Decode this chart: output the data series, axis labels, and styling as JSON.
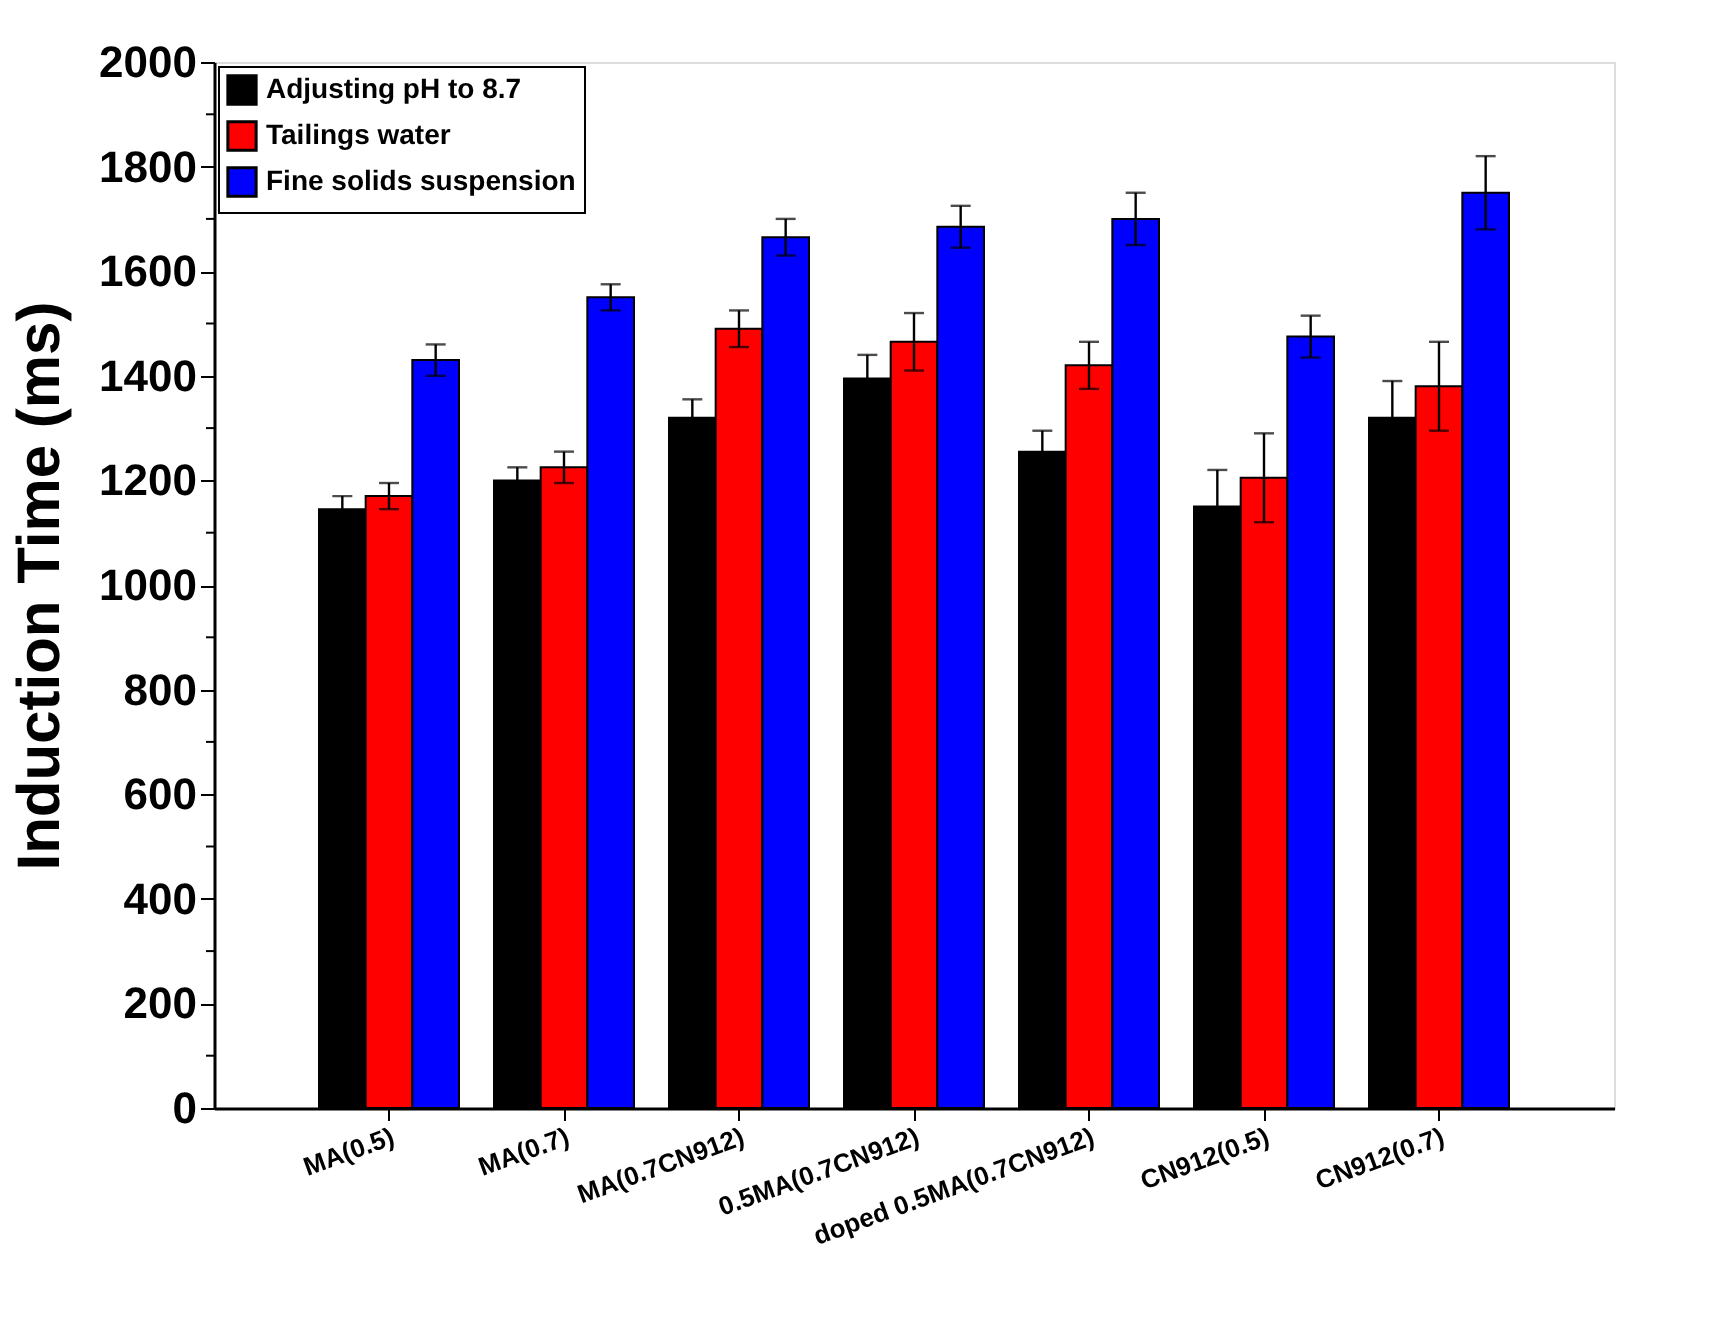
{
  "chart_data": {
    "type": "bar",
    "ylabel": "Induction Time  (ms)",
    "categories": [
      "MA(0.5)",
      "MA(0.7)",
      "MA(0.7CN912)",
      "0.5MA(0.7CN912)",
      "doped 0.5MA(0.7CN912)",
      "CN912(0.5)",
      "CN912(0.7)"
    ],
    "series": [
      {
        "name": "Adjusting pH to 8.7",
        "color": "#000000",
        "values": [
          1145,
          1200,
          1320,
          1395,
          1255,
          1150,
          1320
        ],
        "errors": [
          25,
          25,
          35,
          45,
          40,
          70,
          70
        ]
      },
      {
        "name": "Tailings water",
        "color": "#ff0000",
        "values": [
          1170,
          1225,
          1490,
          1465,
          1420,
          1205,
          1380
        ],
        "errors": [
          25,
          30,
          35,
          55,
          45,
          85,
          85
        ]
      },
      {
        "name": "Fine solids suspension",
        "color": "#0000ff",
        "values": [
          1430,
          1550,
          1665,
          1685,
          1700,
          1475,
          1750
        ],
        "errors": [
          30,
          25,
          35,
          40,
          50,
          40,
          70
        ]
      }
    ],
    "ylim": [
      0,
      2000
    ],
    "yticks": [
      0,
      {
        "value": 100,
        "label": null
      },
      200,
      {
        "value": 300,
        "label": null
      },
      400,
      {
        "value": 500,
        "label": null
      },
      600,
      {
        "value": 700,
        "label": null
      },
      800,
      {
        "value": 900,
        "label": null
      },
      1000,
      {
        "value": 1100,
        "label": null
      },
      1200,
      {
        "value": 1300,
        "label": null
      },
      1400,
      {
        "value": 1500,
        "label": null
      },
      1600,
      {
        "value": 1700,
        "label": null
      },
      1800,
      {
        "value": 1900,
        "label": null
      },
      2000
    ],
    "grid": false,
    "legend": "top left"
  }
}
